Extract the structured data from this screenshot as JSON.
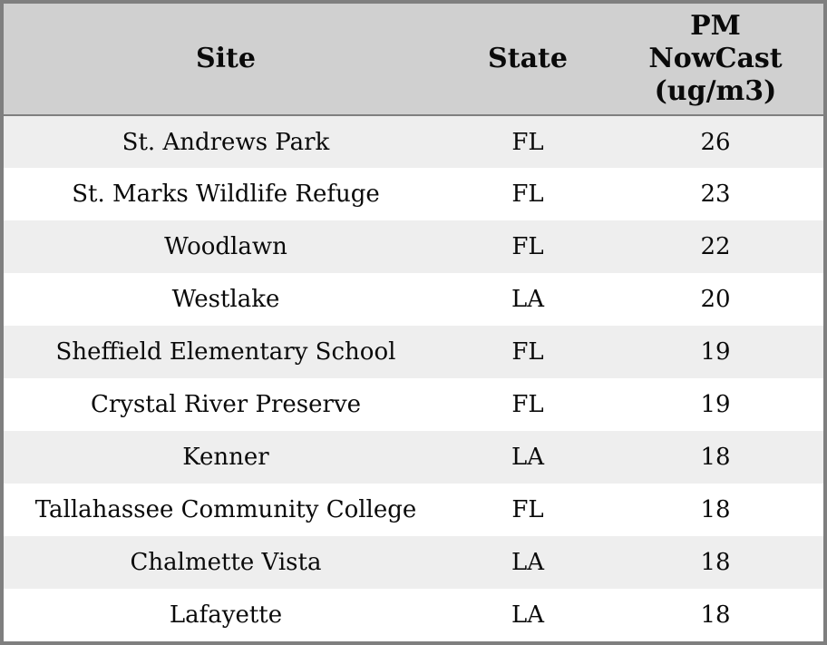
{
  "colors": {
    "border_gray": "#7f7f7f",
    "header_bg": "#d0d0d0",
    "row_alt_bg": "#eeeeee",
    "row_bg": "#ffffff",
    "text_color": "#0a0a0a"
  },
  "chart_data": {
    "type": "table",
    "title": "",
    "columns": [
      "Site",
      "State",
      "PM NowCast (ug/m3)"
    ],
    "header_display": {
      "site": "Site",
      "state": "State",
      "pm": "PM\nNowCast\n(ug/m3)"
    },
    "rows": [
      {
        "site": "St. Andrews Park",
        "state": "FL",
        "pm_nowcast": 26
      },
      {
        "site": "St. Marks Wildlife Refuge",
        "state": "FL",
        "pm_nowcast": 23
      },
      {
        "site": "Woodlawn",
        "state": "FL",
        "pm_nowcast": 22
      },
      {
        "site": "Westlake",
        "state": "LA",
        "pm_nowcast": 20
      },
      {
        "site": "Sheffield Elementary School",
        "state": "FL",
        "pm_nowcast": 19
      },
      {
        "site": "Crystal River Preserve",
        "state": "FL",
        "pm_nowcast": 19
      },
      {
        "site": "Kenner",
        "state": "LA",
        "pm_nowcast": 18
      },
      {
        "site": "Tallahassee Community College",
        "state": "FL",
        "pm_nowcast": 18
      },
      {
        "site": "Chalmette Vista",
        "state": "LA",
        "pm_nowcast": 18
      },
      {
        "site": "Lafayette",
        "state": "LA",
        "pm_nowcast": 18
      }
    ]
  }
}
